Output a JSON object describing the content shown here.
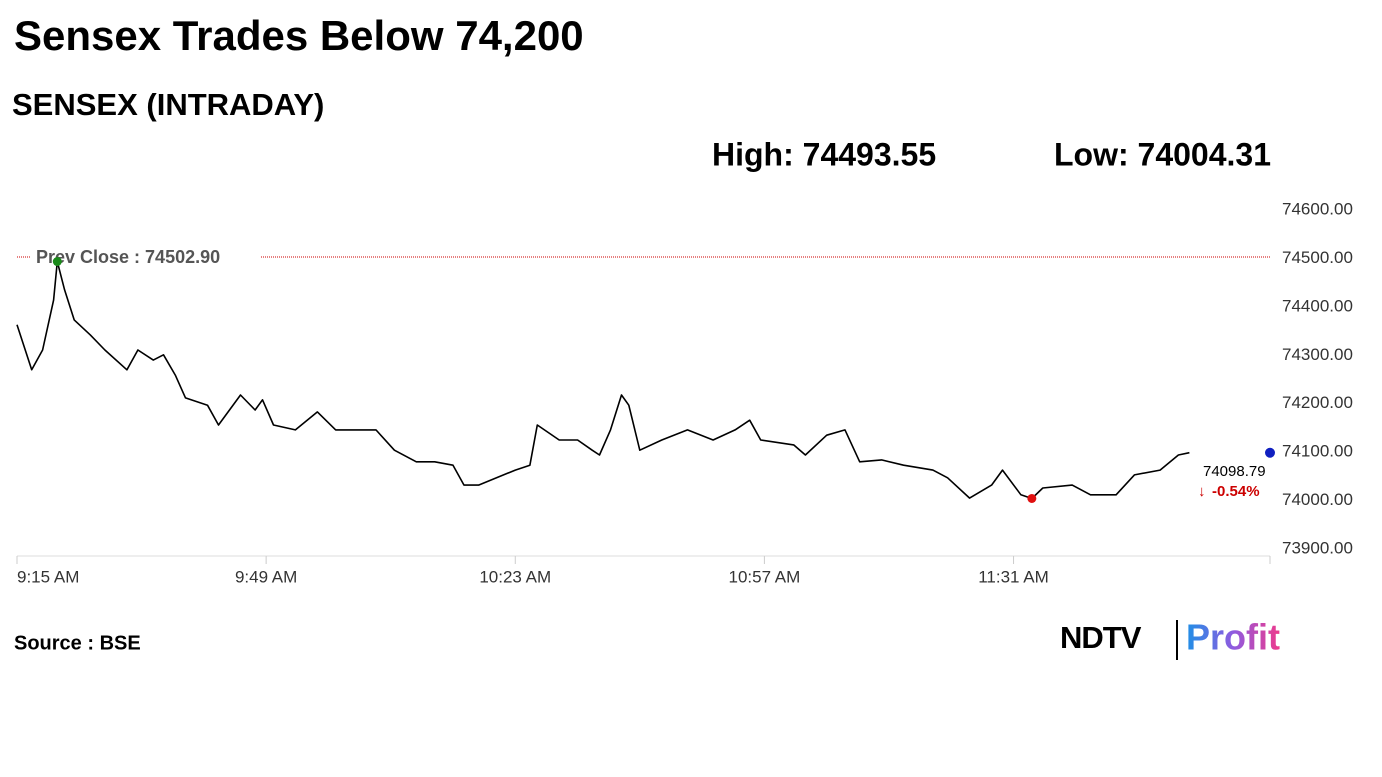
{
  "chart_data": {
    "type": "line",
    "title": "Sensex Trades Below 74,200",
    "subtitle": "SENSEX (INTRADAY)",
    "annotations": {
      "high": "High: 74493.55",
      "low": "Low: 74004.31",
      "last": "74098.79",
      "change": "-0.54%"
    },
    "prev_close": {
      "value": 74502.9,
      "label": "Prev Close : 74502.90",
      "color": "#cc0000"
    },
    "source": "Source : BSE",
    "logo": {
      "left": "NDTV",
      "right": "Profit"
    },
    "color": "#000000",
    "grid": false,
    "x": [
      555,
      557,
      558.5,
      560,
      560.5,
      561.5,
      562.8,
      565,
      567,
      570,
      571.5,
      573.6,
      575,
      576.6,
      578,
      581,
      582.5,
      585.5,
      587.5,
      588.5,
      590,
      593,
      596,
      598.5,
      602,
      604,
      606.5,
      609.5,
      612,
      614.5,
      616,
      618,
      623,
      625,
      626,
      629,
      631.5,
      633.5,
      634.5,
      636,
      637.5,
      638.5,
      640,
      643,
      646.5,
      650,
      653,
      655,
      656.5,
      661,
      662.6,
      665.5,
      668,
      670,
      673,
      676,
      680,
      682,
      685,
      688,
      689.5,
      692,
      693.5,
      695,
      699,
      701.5,
      705,
      707.5,
      711,
      713.5,
      715
    ],
    "values": [
      74363,
      74270,
      74311,
      74414,
      74493.55,
      74435,
      74373,
      74342,
      74311,
      74270,
      74311,
      74290,
      74301,
      74259,
      74212,
      74197,
      74156,
      74218,
      74187,
      74208,
      74156,
      74146,
      74183,
      74146,
      74146,
      74146,
      74104,
      74080,
      74080,
      74073,
      74032,
      74032,
      74063,
      74073,
      74156,
      74125,
      74125,
      74104,
      74094,
      74146,
      74218,
      74197,
      74104,
      74125,
      74146,
      74125,
      74146,
      74166,
      74125,
      74115,
      74094,
      74135,
      74146,
      74080,
      74084,
      74073,
      74063,
      74047,
      74005,
      74032,
      74063,
      74012,
      74004.31,
      74026,
      74032,
      74012,
      74012,
      74053,
      74063,
      74094,
      74098.79
    ],
    "xlim": [
      555,
      726
    ],
    "xticks": [
      {
        "value": 555,
        "label": "9:15 AM"
      },
      {
        "value": 589,
        "label": "9:49 AM"
      },
      {
        "value": 623,
        "label": "10:23 AM"
      },
      {
        "value": 657,
        "label": "10:57 AM"
      },
      {
        "value": 691,
        "label": "11:31 AM"
      }
    ],
    "ylim": [
      73900,
      74600
    ],
    "yticks": [
      {
        "value": 73900,
        "label": "73900.00"
      },
      {
        "value": 74000,
        "label": "74000.00"
      },
      {
        "value": 74100,
        "label": "74100.00"
      },
      {
        "value": 74200,
        "label": "74200.00"
      },
      {
        "value": 74300,
        "label": "74300.00"
      },
      {
        "value": 74400,
        "label": "74400.00"
      },
      {
        "value": 74500,
        "label": "74500.00"
      },
      {
        "value": 74600,
        "label": "74600.00"
      }
    ]
  }
}
